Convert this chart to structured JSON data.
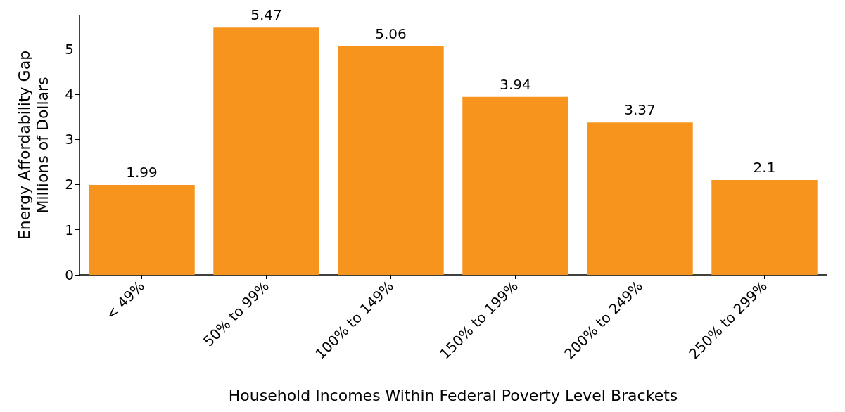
{
  "chart_data": {
    "type": "bar",
    "xlabel": "Household Incomes Within Federal Poverty Level Brackets",
    "ylabel": "Energy Affordability Gap\nMillions of Dollars",
    "categories": [
      "< 49%",
      "50% to 99%",
      "100% to 149%",
      "150% to 199%",
      "200% to 249%",
      "250% to 299%"
    ],
    "values": [
      1.99,
      5.47,
      5.06,
      3.94,
      3.37,
      2.1
    ],
    "color": "#f7941d",
    "ylim": [
      0,
      5.74
    ],
    "yticks": [
      0,
      1,
      2,
      3,
      4,
      5
    ],
    "data_labels": true,
    "grid": false
  }
}
